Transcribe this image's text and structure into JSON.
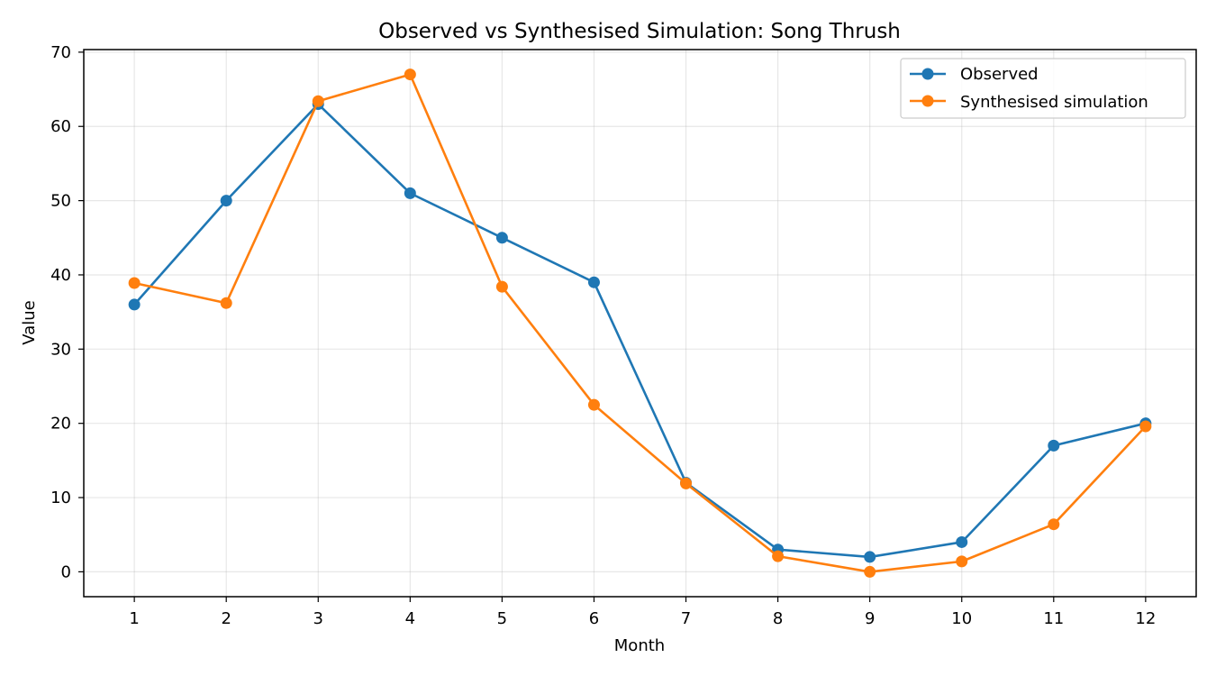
{
  "chart_data": {
    "type": "line",
    "title": "Observed vs Synthesised Simulation: Song Thrush",
    "xlabel": "Month",
    "ylabel": "Value",
    "x": [
      1,
      2,
      3,
      4,
      5,
      6,
      7,
      8,
      9,
      10,
      11,
      12
    ],
    "xlim": [
      0.45,
      12.55
    ],
    "ylim": [
      -3.35,
      70.35
    ],
    "xticks": [
      1,
      2,
      3,
      4,
      5,
      6,
      7,
      8,
      9,
      10,
      11,
      12
    ],
    "yticks": [
      0,
      10,
      20,
      30,
      40,
      50,
      60,
      70
    ],
    "grid": true,
    "legend_position": "top-right",
    "series": [
      {
        "name": "Observed",
        "color": "#1f77b4",
        "marker": "circle",
        "values": [
          36,
          50,
          63,
          51,
          45,
          39,
          12,
          3,
          2,
          4,
          17,
          20
        ]
      },
      {
        "name": "Synthesised simulation",
        "color": "#ff7f0e",
        "marker": "circle",
        "values": [
          38.9,
          36.2,
          63.4,
          67.0,
          38.4,
          22.5,
          11.9,
          2.1,
          0.0,
          1.4,
          6.4,
          19.6
        ]
      }
    ]
  }
}
